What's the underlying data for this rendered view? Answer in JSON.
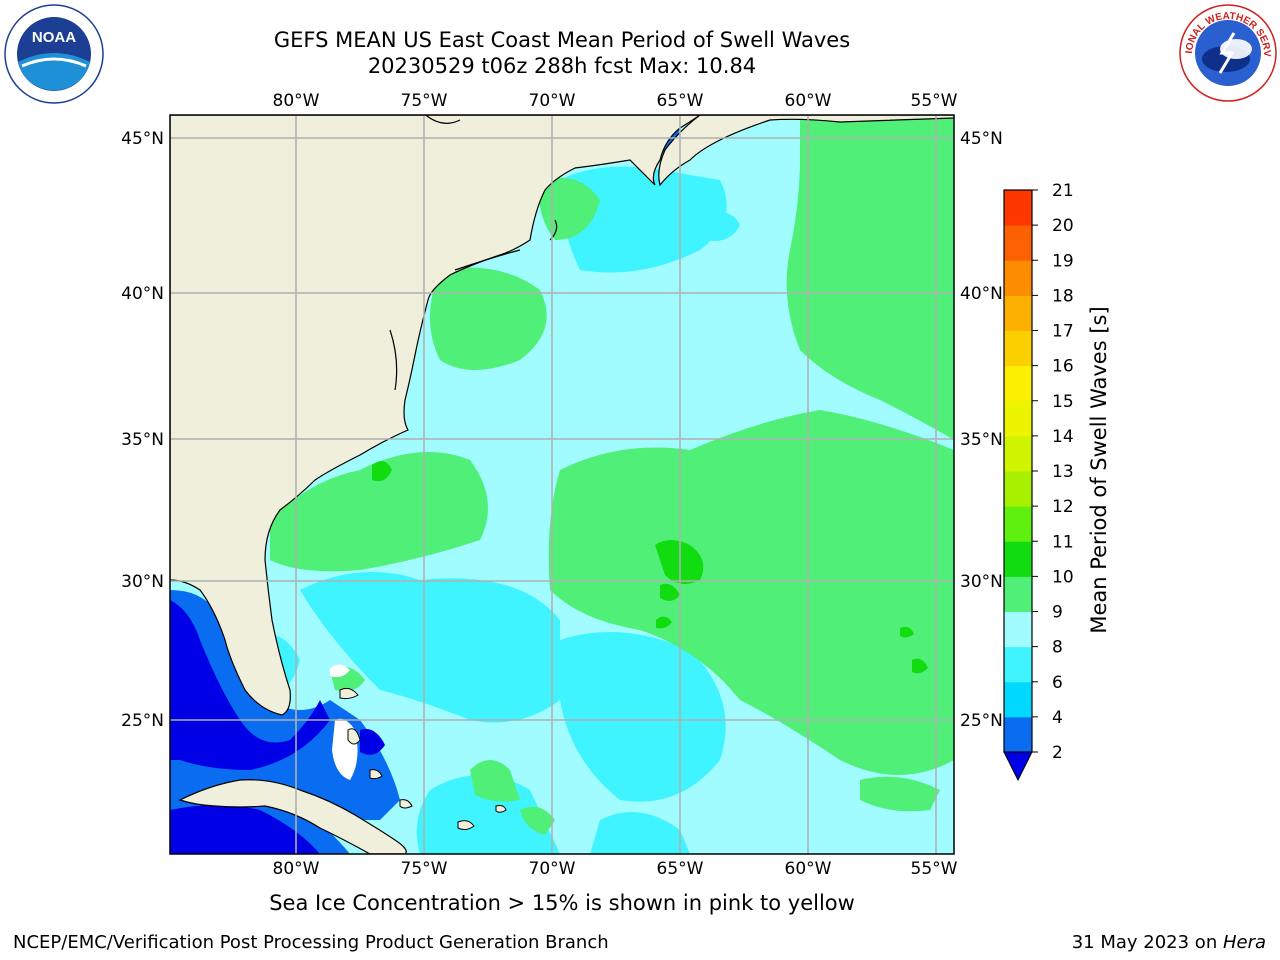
{
  "header": {
    "title_line1": "GEFS MEAN US East Coast Mean Period of Swell Waves",
    "title_line2": "20230529 t06z 288h fcst   Max: 10.84"
  },
  "logos": {
    "left": {
      "text": "NOAA",
      "icon": "noaa-logo-icon"
    },
    "right": {
      "text": "NATIONAL WEATHER SERVICE",
      "icon": "nws-logo-icon"
    }
  },
  "map": {
    "lon_labels": [
      "80°W",
      "75°W",
      "70°W",
      "65°W",
      "60°W",
      "55°W"
    ],
    "lat_labels": [
      "45°N",
      "40°N",
      "35°N",
      "30°N",
      "25°N"
    ],
    "colors": {
      "land": "#efefdc",
      "grid": "#b0b0b0",
      "coast": "#000000"
    }
  },
  "colorbar": {
    "label": "Mean Period of Swell Waves [s]",
    "ticks": [
      "2",
      "4",
      "6",
      "8",
      "9",
      "10",
      "11",
      "12",
      "13",
      "14",
      "15",
      "16",
      "17",
      "18",
      "19",
      "20",
      "21"
    ],
    "colors": [
      "#0a6cf0",
      "#00d8ff",
      "#40f4ff",
      "#a0fcff",
      "#50f078",
      "#10dc10",
      "#60f010",
      "#a8f000",
      "#d0f400",
      "#ecf400",
      "#fcf000",
      "#fcd000",
      "#fcb000",
      "#fc8c00",
      "#fc6000",
      "#fc3800",
      "#fc0000"
    ],
    "extend_color": "#0000e6"
  },
  "caption": "Sea Ice Concentration > 15% is shown in pink to yellow",
  "footer": {
    "left": "NCEP/EMC/Verification Post Processing Product Generation Branch",
    "right_prefix": "31 May 2023 on ",
    "right_italic": "Hera"
  }
}
